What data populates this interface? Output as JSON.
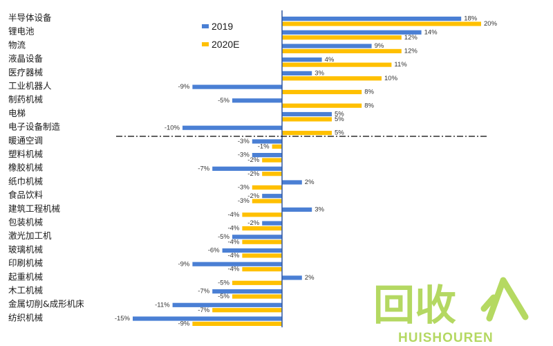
{
  "chart_data": {
    "type": "bar",
    "orientation": "horizontal",
    "categories": [
      "半导体设备",
      "锂电池",
      "物流",
      "液晶设备",
      "医疗器械",
      "工业机器人",
      "制药机械",
      "电梯",
      "电子设备制造",
      "暖通空调",
      "塑料机械",
      "橡胶机械",
      "纸巾机械",
      "食品饮料",
      "建筑工程机械",
      "包装机械",
      "激光加工机",
      "玻璃机械",
      "印刷机械",
      "起重机械",
      "木工机械",
      "金属切削&成形机床",
      "纺织机械"
    ],
    "series": [
      {
        "name": "2019",
        "color": "#4a7fd4",
        "values": [
          18,
          14,
          9,
          4,
          3,
          -9,
          -5,
          5,
          -10,
          -3,
          -3,
          -7,
          2,
          -2,
          3,
          -2,
          -5,
          -6,
          -9,
          2,
          -7,
          -11,
          -15
        ]
      },
      {
        "name": "2020E",
        "color": "#ffc000",
        "values": [
          20,
          12,
          12,
          11,
          10,
          8,
          8,
          5,
          5,
          -1,
          -2,
          -2,
          -3,
          -3,
          -4,
          -4,
          -4,
          -4,
          -4,
          -5,
          -5,
          -7,
          -9
        ]
      }
    ],
    "value_suffix": "%",
    "legend_position": "top-left",
    "divider_after_index": 8,
    "grid": false
  },
  "watermark": {
    "main_text": "回收",
    "sub_text": "HUISHOUREN"
  }
}
